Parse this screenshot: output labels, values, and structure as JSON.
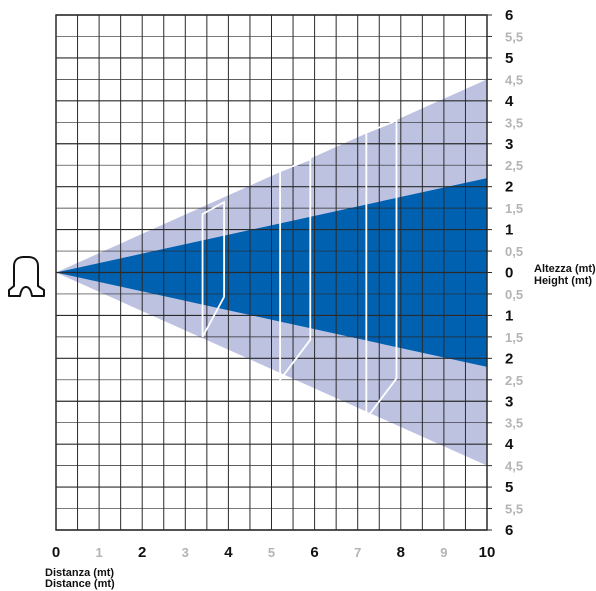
{
  "chart_data": {
    "type": "area",
    "title": "",
    "x_axis": {
      "range": [
        0,
        10
      ],
      "tick_step": 0.5,
      "labels": [
        "0",
        "1",
        "2",
        "3",
        "4",
        "5",
        "6",
        "7",
        "8",
        "9",
        "10"
      ],
      "major_every": 2,
      "caption_line1": "Distanza (mt)",
      "caption_line2": "Distance (mt)"
    },
    "y_axis": {
      "range": [
        -6,
        6
      ],
      "tick_step": 0.5,
      "labels_top_to_bottom": [
        "6",
        "5,5",
        "5",
        "4,5",
        "4",
        "3,5",
        "3",
        "2,5",
        "2",
        "1,5",
        "1",
        "0,5",
        "0",
        "0,5",
        "1",
        "1,5",
        "2",
        "2,5",
        "3",
        "3,5",
        "4",
        "4,5",
        "5",
        "5,5",
        "6"
      ],
      "caption_line1": "Altezza (mt)",
      "caption_line2": "Height (mt)"
    },
    "grid": true,
    "series": [
      {
        "kind": "wide-cone",
        "color": "#bec2e1",
        "x": [
          0,
          10
        ],
        "y_upper": [
          0,
          4.5
        ],
        "y_lower": [
          0,
          -4.5
        ]
      },
      {
        "kind": "narrow-cone",
        "color": "#0061b0",
        "x": [
          0,
          10
        ],
        "y_upper": [
          0,
          2.2
        ],
        "y_lower": [
          0,
          -2.2
        ]
      }
    ],
    "frames": [
      {
        "x_start": 3.4,
        "x_end": 3.9,
        "y_half_height": 1.5
      },
      {
        "x_start": 5.2,
        "x_end": 5.9,
        "y_half_height": 2.5
      },
      {
        "x_start": 7.2,
        "x_end": 7.9,
        "y_half_height": 3.4
      }
    ],
    "icon": "train-front-icon",
    "colors": {
      "grid": "#2a2a2a",
      "frame": "#ffffff",
      "tick_major": "#111111",
      "tick_minor": "#b4b4b4"
    }
  }
}
